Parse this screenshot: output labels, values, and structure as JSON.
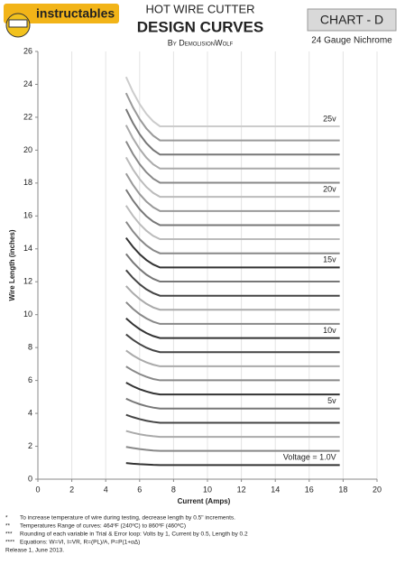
{
  "header": {
    "logo": "instructables",
    "title_line1": "HOT WIRE CUTTER",
    "title_line2": "DESIGN CURVES",
    "byline": "By DemolisionWolf",
    "chart_label": "CHART - D",
    "subtitle": "24 Gauge Nichrome"
  },
  "chart_data": {
    "type": "line",
    "xlabel": "Current (Amps)",
    "ylabel": "Wire Length (inches)",
    "xlim": [
      0,
      20
    ],
    "ylim": [
      0,
      26
    ],
    "xticks": [
      0,
      2,
      4,
      6,
      8,
      10,
      12,
      14,
      16,
      18,
      20
    ],
    "yticks": [
      0,
      2,
      4,
      6,
      8,
      10,
      12,
      14,
      16,
      18,
      20,
      22,
      24,
      26
    ],
    "grid": true,
    "x": [
      5.2,
      5.6,
      6.0,
      6.4,
      6.8,
      7.2,
      17.8
    ],
    "series": [
      {
        "color": "#333333",
        "label": "Voltage = 1.0V",
        "values": [
          0.98,
          0.94,
          0.91,
          0.89,
          0.87,
          0.86,
          0.86
        ]
      },
      {
        "color": "#888888",
        "values": [
          1.96,
          1.89,
          1.83,
          1.78,
          1.74,
          1.72,
          1.72
        ]
      },
      {
        "color": "#aaaaaa",
        "values": [
          2.93,
          2.82,
          2.73,
          2.66,
          2.61,
          2.57,
          2.57
        ]
      },
      {
        "color": "#444444",
        "values": [
          3.91,
          3.77,
          3.65,
          3.55,
          3.48,
          3.43,
          3.43
        ]
      },
      {
        "color": "#777777",
        "label": "5v",
        "values": [
          4.89,
          4.71,
          4.56,
          4.44,
          4.35,
          4.29,
          4.29
        ]
      },
      {
        "color": "#333333",
        "values": [
          5.87,
          5.65,
          5.47,
          5.33,
          5.22,
          5.15,
          5.15
        ]
      },
      {
        "color": "#888888",
        "values": [
          6.85,
          6.6,
          6.39,
          6.22,
          6.09,
          6.01,
          6.01
        ]
      },
      {
        "color": "#aaaaaa",
        "values": [
          7.82,
          7.53,
          7.29,
          7.1,
          6.96,
          6.86,
          6.86
        ]
      },
      {
        "color": "#444444",
        "values": [
          8.8,
          8.48,
          8.21,
          7.99,
          7.83,
          7.72,
          7.72
        ]
      },
      {
        "color": "#333333",
        "label": "10v",
        "values": [
          9.78,
          9.42,
          9.12,
          8.88,
          8.7,
          8.58,
          8.58
        ]
      },
      {
        "color": "#888888",
        "values": [
          10.76,
          10.36,
          10.03,
          9.77,
          9.57,
          9.44,
          9.44
        ]
      },
      {
        "color": "#aaaaaa",
        "values": [
          11.74,
          11.31,
          10.95,
          10.66,
          10.44,
          10.3,
          10.3
        ]
      },
      {
        "color": "#444444",
        "values": [
          12.71,
          12.24,
          11.85,
          11.54,
          11.31,
          11.15,
          11.15
        ]
      },
      {
        "color": "#777777",
        "values": [
          13.69,
          13.19,
          12.77,
          12.43,
          12.18,
          12.01,
          12.01
        ]
      },
      {
        "color": "#333333",
        "label": "15v",
        "values": [
          14.67,
          14.13,
          13.68,
          13.32,
          13.05,
          12.87,
          12.87
        ]
      },
      {
        "color": "#888888",
        "values": [
          15.65,
          15.07,
          14.59,
          14.21,
          13.92,
          13.73,
          13.73
        ]
      },
      {
        "color": "#bbbbbb",
        "values": [
          16.63,
          16.02,
          15.51,
          15.1,
          14.79,
          14.59,
          14.59
        ]
      },
      {
        "color": "#777777",
        "values": [
          17.6,
          16.95,
          16.41,
          15.98,
          15.66,
          15.44,
          15.44
        ]
      },
      {
        "color": "#999999",
        "values": [
          18.58,
          17.9,
          17.33,
          16.87,
          16.53,
          16.3,
          16.3
        ]
      },
      {
        "color": "#bbbbbb",
        "label": "20v",
        "values": [
          19.56,
          18.84,
          18.24,
          17.76,
          17.4,
          17.16,
          17.16
        ]
      },
      {
        "color": "#888888",
        "values": [
          20.54,
          19.78,
          19.15,
          18.65,
          18.27,
          18.02,
          18.02
        ]
      },
      {
        "color": "#aaaaaa",
        "values": [
          21.52,
          20.73,
          20.07,
          19.54,
          19.14,
          18.88,
          18.88
        ]
      },
      {
        "color": "#777777",
        "values": [
          22.49,
          21.66,
          20.97,
          20.42,
          20.01,
          19.73,
          19.73
        ]
      },
      {
        "color": "#999999",
        "values": [
          23.47,
          22.61,
          21.89,
          21.31,
          20.88,
          20.59,
          20.59
        ]
      },
      {
        "color": "#cccccc",
        "label": "25v",
        "values": [
          24.45,
          23.55,
          22.8,
          22.2,
          21.75,
          21.45,
          21.45
        ]
      }
    ]
  },
  "notes": [
    {
      "marker": "*",
      "text": "To increase temperature of wire during testing, decrease length by 0.5\" increments."
    },
    {
      "marker": "**",
      "text": "Temperatures Range of curves: 464ºF (240ºC) to 860ºF (460ºC)"
    },
    {
      "marker": "***",
      "text": "Rounding of each variable in Trial & Error loop: Volts by 1, Current by 0.5, Length by 0.2"
    },
    {
      "marker": "****",
      "text": "Equations: W=VI, I=VR, R=(PL)/A, P=P(1+αΔ)"
    },
    {
      "marker": "",
      "text": "Release 1, June 2013."
    }
  ]
}
